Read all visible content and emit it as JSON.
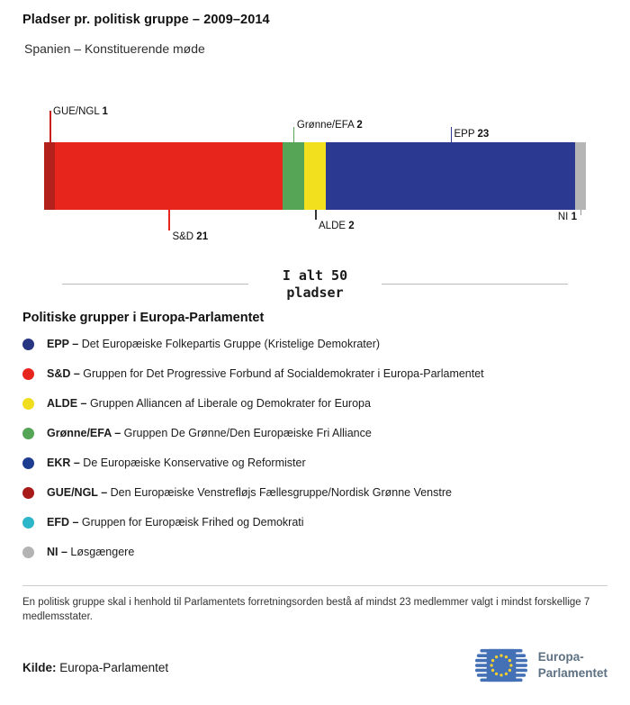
{
  "header": {
    "title": "Pladser pr. politisk gruppe – 2009–2014",
    "subtitle": "Spanien – Konstituerende møde"
  },
  "chart_data": {
    "type": "bar",
    "stacked": true,
    "orientation": "horizontal",
    "title": "Pladser pr. politisk gruppe – 2009–2014",
    "subtitle": "Spanien – Konstituerende møde",
    "total": 50,
    "total_label": "I alt 50 pladser",
    "categories": [
      "GUE/NGL",
      "S&D",
      "Grønne/EFA",
      "ALDE",
      "EPP",
      "NI"
    ],
    "values": [
      1,
      21,
      2,
      2,
      23,
      1
    ],
    "segments": [
      {
        "name": "GUE/NGL",
        "value": 1,
        "color": "#b3211c",
        "callout": {
          "side": "top",
          "line": 35,
          "line_color": "#c9201d",
          "label_offset": 28
        }
      },
      {
        "name": "S&D",
        "value": 21,
        "color": "#e8251d",
        "callout": {
          "side": "bottom",
          "line": 23,
          "line_color": "#e8251d",
          "label_offset": 24
        }
      },
      {
        "name": "Grønne/EFA",
        "value": 2,
        "color": "#56a456",
        "callout": {
          "side": "top",
          "line": 17,
          "line_color": "#56a456",
          "label_offset": 13
        }
      },
      {
        "name": "ALDE",
        "value": 2,
        "color": "#f2e01e",
        "callout": {
          "side": "bottom",
          "line": 11,
          "line_color": "#333333",
          "label_offset": 12
        }
      },
      {
        "name": "EPP",
        "value": 23,
        "color": "#2b3990",
        "callout": {
          "side": "top",
          "line": 17,
          "line_color": "#2b3990",
          "label_offset": 3
        }
      },
      {
        "name": "NI",
        "value": 1,
        "color": "#b5b5b5",
        "callout": {
          "side": "bottom",
          "line": 6,
          "line_color": "#999999",
          "label_offset": 2,
          "align": "right"
        }
      }
    ]
  },
  "legend": {
    "heading": "Politiske grupper i Europa-Parlamentet",
    "items": [
      {
        "abbr": "EPP",
        "desc": "Det Europæiske Folkepartis Gruppe (Kristelige Demokrater)",
        "color": "#283583"
      },
      {
        "abbr": "S&D",
        "desc": "Gruppen for Det Progressive Forbund af Socialdemokrater i Europa-Parlamentet",
        "color": "#e8251d"
      },
      {
        "abbr": "ALDE",
        "desc": "Gruppen Alliancen af Liberale og Demokrater for Europa",
        "color": "#f0dd1d"
      },
      {
        "abbr": "Grønne/EFA",
        "desc": "Gruppen De Grønne/Den Europæiske Fri Alliance",
        "color": "#55a556"
      },
      {
        "abbr": "EKR",
        "desc": "De Europæiske Konservative og Reformister",
        "color": "#1d3d91"
      },
      {
        "abbr": "GUE/NGL",
        "desc": "Den Europæiske Venstrefløjs Fællesgruppe/Nordisk Grønne Venstre",
        "color": "#a81a17"
      },
      {
        "abbr": "EFD",
        "desc": "Gruppen for Europæisk Frihed og Demokrati",
        "color": "#2cb6c9"
      },
      {
        "abbr": "NI",
        "desc": "Løsgængere",
        "color": "#b3b3b3"
      }
    ]
  },
  "footnote": "En politisk gruppe skal i henhold til Parlamentets forretningsorden bestå af mindst 23 medlemmer valgt i mindst forskellige 7 medlemsstater.",
  "source": {
    "label": "Kilde:",
    "value": "Europa-Parlamentet"
  },
  "logo": {
    "line1": "Europa-",
    "line2": "Parlamentet"
  }
}
